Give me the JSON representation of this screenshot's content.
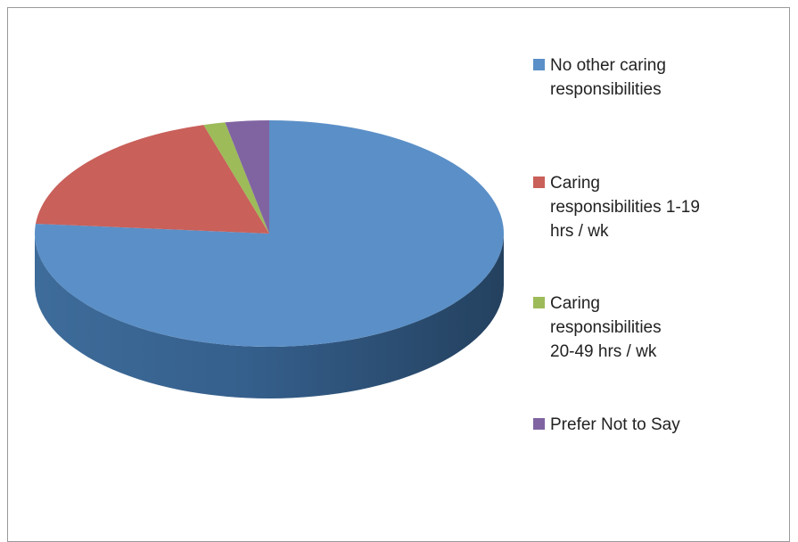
{
  "chart_data": {
    "type": "pie",
    "style": "3d",
    "title": "",
    "legend_position": "right",
    "series": [
      {
        "values": [
          76,
          19,
          1.5,
          3
        ],
        "labels": [
          "No other caring responsibilities",
          "Caring responsibilities 1-19 hrs / wk",
          "Caring responsibilities 20-49 hrs / wk",
          "Prefer Not to Say"
        ],
        "colors": [
          "#5b8fc7",
          "#c9605a",
          "#9dbb59",
          "#8064a2"
        ]
      }
    ]
  },
  "legend": {
    "items": [
      {
        "label": "No other caring\nresponsibilities",
        "color": "#5b8fc7"
      },
      {
        "label": "Caring\nresponsibilities 1-19\nhrs / wk",
        "color": "#c9605a"
      },
      {
        "label": "Caring\nresponsibilities\n20-49 hrs / wk",
        "color": "#9dbb59"
      },
      {
        "label": "Prefer Not to Say",
        "color": "#8064a2"
      }
    ]
  }
}
